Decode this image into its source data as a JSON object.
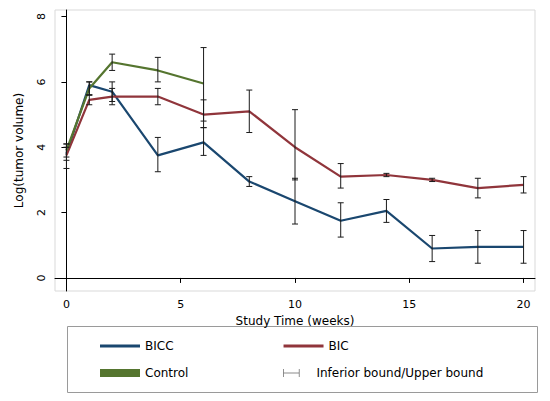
{
  "chart_data": {
    "type": "line",
    "x_label": "Study Time (weeks)",
    "y_label": "Log(tumor volume)",
    "xlim": [
      -0.5,
      20.5
    ],
    "xticks": [
      0,
      5,
      10,
      15,
      20
    ],
    "ylim": [
      -0.4,
      8.2
    ],
    "yticks": [
      0,
      2,
      4,
      6,
      8
    ],
    "grid": false,
    "legend": "bottom",
    "error_bar_name": "Inferior bound/Upper bound",
    "error_bar_color": "#1a1a1a",
    "series": [
      {
        "name": "BICC",
        "color": "#1a476f",
        "x": [
          0,
          1,
          2,
          4,
          6,
          8,
          10,
          12,
          14,
          16,
          18,
          20
        ],
        "values": [
          3.8,
          5.9,
          5.7,
          3.75,
          4.15,
          2.95,
          2.35,
          1.75,
          2.05,
          0.9,
          0.95,
          0.95
        ],
        "lower": [
          3.6,
          5.6,
          5.4,
          3.25,
          3.75,
          2.8,
          1.65,
          1.25,
          1.7,
          0.5,
          0.45,
          0.45
        ],
        "upper": [
          4.0,
          6.0,
          6.0,
          4.3,
          4.6,
          3.1,
          3.05,
          2.3,
          2.4,
          1.3,
          1.45,
          1.45
        ]
      },
      {
        "name": "BIC",
        "color": "#90353b",
        "x": [
          0,
          1,
          2,
          4,
          6,
          8,
          10,
          12,
          14,
          16,
          18,
          20
        ],
        "values": [
          3.75,
          5.45,
          5.55,
          5.55,
          5.0,
          5.1,
          4.0,
          3.1,
          3.15,
          3.0,
          2.75,
          2.85
        ],
        "lower": [
          3.35,
          5.3,
          5.3,
          5.3,
          4.6,
          4.45,
          3.0,
          2.75,
          3.1,
          2.95,
          2.45,
          2.6
        ],
        "upper": [
          4.1,
          5.6,
          5.8,
          5.8,
          5.45,
          5.75,
          5.15,
          3.5,
          3.2,
          3.05,
          3.05,
          3.1
        ]
      },
      {
        "name": "Control",
        "color": "#55752f",
        "x": [
          0,
          1,
          2,
          4,
          6
        ],
        "values": [
          3.9,
          5.8,
          6.6,
          6.35,
          5.95
        ],
        "lower": [
          3.7,
          5.6,
          6.35,
          6.0,
          4.8
        ],
        "upper": [
          4.1,
          6.0,
          6.85,
          6.75,
          7.05
        ]
      }
    ]
  }
}
